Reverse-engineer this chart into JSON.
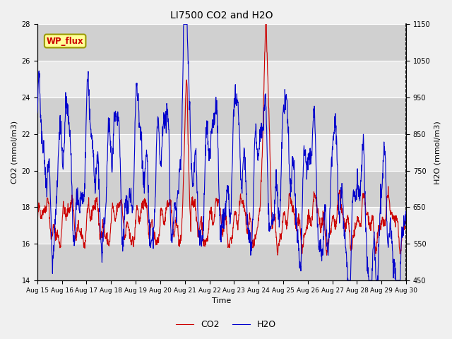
{
  "title": "LI7500 CO2 and H2O",
  "xlabel": "Time",
  "ylabel_left": "CO2 (mmol/m3)",
  "ylabel_right": "H2O (mmol/m3)",
  "x_tick_labels": [
    "Aug 15",
    "Aug 16",
    "Aug 17",
    "Aug 18",
    "Aug 19",
    "Aug 20",
    "Aug 21",
    "Aug 22",
    "Aug 23",
    "Aug 24",
    "Aug 25",
    "Aug 26",
    "Aug 27",
    "Aug 28",
    "Aug 29",
    "Aug 30"
  ],
  "ylim_left": [
    14,
    28
  ],
  "ylim_right": [
    450,
    1150
  ],
  "yticks_left": [
    14,
    16,
    18,
    20,
    22,
    24,
    26,
    28
  ],
  "yticks_right": [
    450,
    550,
    650,
    750,
    850,
    950,
    1050,
    1150
  ],
  "co2_color": "#cc0000",
  "h2o_color": "#0000cc",
  "background_color": "#f0f0f0",
  "plot_bg_color": "#e8e8e8",
  "band_color": "#d0d0d0",
  "annotation_text": "WP_flux",
  "annotation_color": "#cc0000",
  "annotation_bg": "#ffff99",
  "annotation_border": "#999900",
  "legend_co2": "CO2",
  "legend_h2o": "H2O",
  "n_points": 1500
}
